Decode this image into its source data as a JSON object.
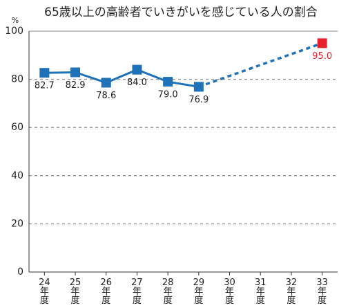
{
  "chart_data": {
    "type": "line",
    "title": "65歳以上の高齢者でいきがいを感じている人の割合",
    "y_label": "%",
    "categories": [
      "24年度",
      "25年度",
      "26年度",
      "27年度",
      "28年度",
      "29年度",
      "30年度",
      "31年度",
      "32年度",
      "33年度"
    ],
    "series": [
      {
        "color": "#1f72b8",
        "values": [
          82.7,
          82.9,
          78.6,
          84.0,
          79.0,
          76.9,
          null,
          null,
          null,
          null
        ],
        "value_labels": [
          "82.7",
          "82.9",
          "78.6",
          "84.0",
          "79.0",
          "76.9",
          null,
          null,
          null,
          null
        ]
      },
      {
        "color": "#e8222b",
        "values": [
          null,
          null,
          null,
          null,
          null,
          null,
          null,
          null,
          null,
          95.0
        ],
        "value_labels": [
          null,
          null,
          null,
          null,
          null,
          null,
          null,
          null,
          null,
          "95.0"
        ]
      }
    ],
    "ylim": [
      0,
      100
    ],
    "yticks": [
      0,
      20,
      40,
      60,
      80,
      100
    ],
    "grid": true
  }
}
